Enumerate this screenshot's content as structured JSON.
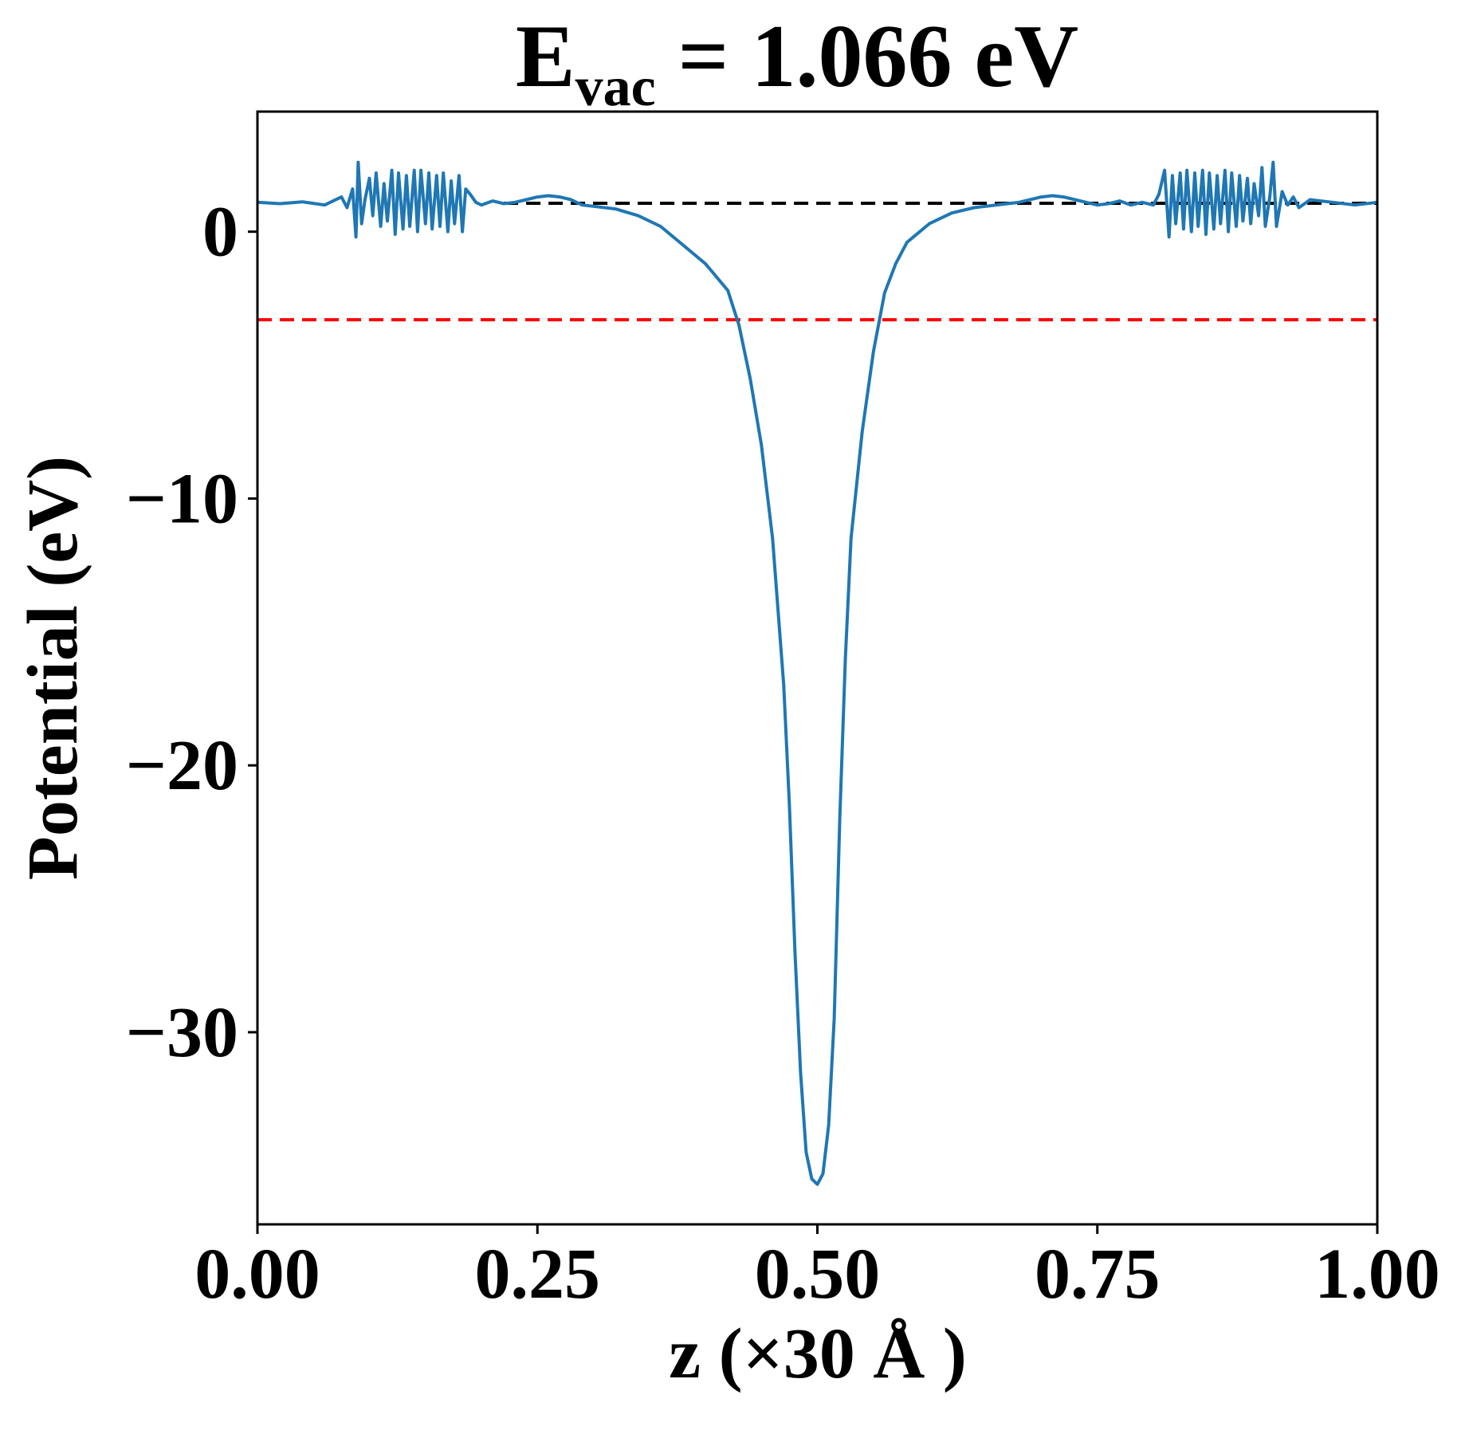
{
  "chart_data": {
    "type": "line",
    "title": {
      "main": "E",
      "subscript": "vac",
      "rest": " = 1.066 eV"
    },
    "xlabel": "z (×30 Å )",
    "ylabel": "Potential (eV)",
    "xlim": [
      0.0,
      1.0
    ],
    "ylim": [
      -37.2,
      4.5
    ],
    "xticks": [
      0.0,
      0.25,
      0.5,
      0.75,
      1.0
    ],
    "xtick_labels": [
      "0.00",
      "0.25",
      "0.50",
      "0.75",
      "1.00"
    ],
    "yticks": [
      0,
      -10,
      -20,
      -30
    ],
    "ytick_labels": [
      "0",
      "−10",
      "−20",
      "−30"
    ],
    "grid": false,
    "reference_lines": [
      {
        "name": "vacuum level",
        "y": 1.066,
        "color": "#000000",
        "style": "dashed",
        "x_range": [
          0.22,
          1.0
        ]
      },
      {
        "name": "reference level",
        "y": -3.3,
        "color": "#ff0000",
        "style": "dashed",
        "x_range": [
          0.0,
          1.0
        ]
      }
    ],
    "series": [
      {
        "color": "#1f77b4",
        "x": [
          0.0,
          0.02,
          0.04,
          0.06,
          0.075,
          0.08,
          0.085,
          0.088,
          0.09,
          0.093,
          0.096,
          0.1,
          0.103,
          0.106,
          0.11,
          0.113,
          0.116,
          0.12,
          0.123,
          0.126,
          0.13,
          0.133,
          0.136,
          0.14,
          0.143,
          0.146,
          0.15,
          0.153,
          0.156,
          0.16,
          0.163,
          0.166,
          0.17,
          0.173,
          0.176,
          0.18,
          0.183,
          0.186,
          0.19,
          0.195,
          0.2,
          0.21,
          0.22,
          0.23,
          0.24,
          0.25,
          0.26,
          0.27,
          0.28,
          0.29,
          0.3,
          0.32,
          0.34,
          0.36,
          0.38,
          0.4,
          0.42,
          0.43,
          0.44,
          0.45,
          0.46,
          0.47,
          0.475,
          0.48,
          0.485,
          0.49,
          0.495,
          0.5,
          0.505,
          0.51,
          0.515,
          0.52,
          0.525,
          0.53,
          0.54,
          0.55,
          0.56,
          0.57,
          0.58,
          0.6,
          0.62,
          0.64,
          0.66,
          0.68,
          0.7,
          0.71,
          0.72,
          0.73,
          0.74,
          0.75,
          0.76,
          0.77,
          0.78,
          0.79,
          0.8,
          0.805,
          0.81,
          0.814,
          0.817,
          0.82,
          0.824,
          0.827,
          0.83,
          0.834,
          0.837,
          0.84,
          0.844,
          0.847,
          0.85,
          0.854,
          0.857,
          0.86,
          0.864,
          0.867,
          0.87,
          0.874,
          0.877,
          0.88,
          0.884,
          0.887,
          0.89,
          0.894,
          0.897,
          0.9,
          0.904,
          0.907,
          0.91,
          0.915,
          0.92,
          0.925,
          0.93,
          0.94,
          0.96,
          0.98,
          1.0
        ],
        "y": [
          1.1,
          1.05,
          1.12,
          1.0,
          1.3,
          0.9,
          1.6,
          -0.2,
          2.6,
          0.3,
          1.2,
          2.0,
          0.6,
          2.2,
          0.2,
          1.8,
          0.4,
          2.3,
          -0.1,
          2.2,
          0.1,
          2.1,
          0.2,
          2.3,
          0.0,
          2.3,
          0.3,
          2.2,
          0.1,
          2.1,
          0.2,
          2.2,
          0.0,
          1.9,
          0.3,
          2.1,
          0.0,
          1.6,
          1.4,
          1.1,
          1.0,
          1.15,
          1.05,
          1.1,
          1.2,
          1.3,
          1.35,
          1.3,
          1.2,
          1.0,
          0.95,
          0.85,
          0.6,
          0.2,
          -0.5,
          -1.2,
          -2.2,
          -3.5,
          -5.5,
          -8.0,
          -11.5,
          -17.0,
          -21.5,
          -27.0,
          -31.5,
          -34.5,
          -35.5,
          -35.7,
          -35.3,
          -33.5,
          -29.5,
          -22.0,
          -16.0,
          -11.5,
          -7.5,
          -4.5,
          -2.3,
          -1.2,
          -0.4,
          0.3,
          0.7,
          0.9,
          1.0,
          1.1,
          1.3,
          1.35,
          1.3,
          1.2,
          1.1,
          1.0,
          1.05,
          1.15,
          1.0,
          1.1,
          1.0,
          1.4,
          2.3,
          -0.2,
          2.1,
          0.3,
          2.2,
          0.1,
          2.3,
          0.0,
          2.2,
          0.2,
          2.3,
          -0.1,
          2.2,
          0.1,
          2.1,
          0.3,
          2.3,
          0.0,
          2.2,
          0.2,
          2.1,
          0.4,
          2.0,
          0.3,
          1.8,
          0.6,
          2.4,
          0.2,
          1.3,
          2.6,
          0.2,
          1.5,
          1.0,
          1.3,
          0.9,
          1.2,
          1.1,
          1.0,
          1.1
        ]
      }
    ]
  }
}
